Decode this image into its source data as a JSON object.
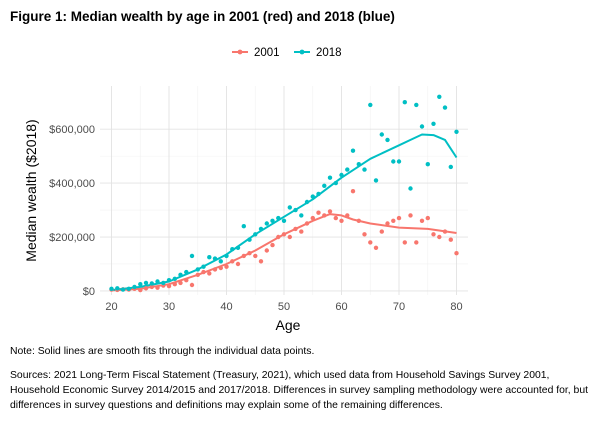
{
  "figure": {
    "title": "Figure 1: Median wealth by age in 2001 (red) and 2018 (blue)",
    "note": "Note: Solid lines are smooth fits through the individual data points.",
    "sources": "Sources: 2021 Long-Term Fiscal Statement (Treasury, 2021), which used data from Household Savings Survey 2001, Household Economic Survey 2014/2015 and 2017/2018. Differences in survey sampling methodology were accounted for, but differences in survey questions and definitions may explain some of the remaining differences."
  },
  "chart_data": {
    "type": "scatter",
    "xlabel": "Age",
    "ylabel": "Median wealth ($2018)",
    "xlim": [
      18,
      82
    ],
    "ylim": [
      -15000,
      760000
    ],
    "x_ticks": [
      20,
      30,
      40,
      50,
      60,
      70,
      80
    ],
    "y_ticks": [
      0,
      200000,
      400000,
      600000
    ],
    "y_tick_labels": [
      "$0",
      "$200,000",
      "$400,000",
      "$600,000"
    ],
    "grid": true,
    "legend_position": "top",
    "series": [
      {
        "name": "2001",
        "color": "#F8766D",
        "points": [
          [
            20,
            5000
          ],
          [
            21,
            4000
          ],
          [
            22,
            6000
          ],
          [
            23,
            5000
          ],
          [
            24,
            8000
          ],
          [
            25,
            3000
          ],
          [
            26,
            10000
          ],
          [
            27,
            15000
          ],
          [
            28,
            12000
          ],
          [
            29,
            20000
          ],
          [
            30,
            18000
          ],
          [
            31,
            25000
          ],
          [
            32,
            30000
          ],
          [
            33,
            40000
          ],
          [
            34,
            22000
          ],
          [
            35,
            60000
          ],
          [
            36,
            70000
          ],
          [
            37,
            65000
          ],
          [
            38,
            80000
          ],
          [
            39,
            85000
          ],
          [
            40,
            90000
          ],
          [
            41,
            110000
          ],
          [
            42,
            100000
          ],
          [
            43,
            130000
          ],
          [
            44,
            140000
          ],
          [
            45,
            130000
          ],
          [
            46,
            110000
          ],
          [
            47,
            150000
          ],
          [
            48,
            170000
          ],
          [
            49,
            200000
          ],
          [
            50,
            210000
          ],
          [
            51,
            200000
          ],
          [
            52,
            230000
          ],
          [
            53,
            220000
          ],
          [
            54,
            250000
          ],
          [
            55,
            270000
          ],
          [
            56,
            290000
          ],
          [
            57,
            280000
          ],
          [
            58,
            295000
          ],
          [
            59,
            270000
          ],
          [
            60,
            260000
          ],
          [
            61,
            280000
          ],
          [
            62,
            370000
          ],
          [
            63,
            260000
          ],
          [
            64,
            210000
          ],
          [
            65,
            180000
          ],
          [
            66,
            160000
          ],
          [
            67,
            220000
          ],
          [
            68,
            250000
          ],
          [
            69,
            260000
          ],
          [
            70,
            270000
          ],
          [
            71,
            180000
          ],
          [
            72,
            280000
          ],
          [
            73,
            180000
          ],
          [
            74,
            260000
          ],
          [
            75,
            270000
          ],
          [
            76,
            210000
          ],
          [
            77,
            200000
          ],
          [
            78,
            220000
          ],
          [
            79,
            190000
          ],
          [
            80,
            140000
          ]
        ],
        "smooth": [
          [
            20,
            2000
          ],
          [
            25,
            8000
          ],
          [
            30,
            25000
          ],
          [
            35,
            60000
          ],
          [
            40,
            100000
          ],
          [
            45,
            150000
          ],
          [
            50,
            210000
          ],
          [
            55,
            260000
          ],
          [
            58,
            285000
          ],
          [
            60,
            280000
          ],
          [
            62,
            265000
          ],
          [
            65,
            250000
          ],
          [
            70,
            235000
          ],
          [
            75,
            230000
          ],
          [
            80,
            215000
          ]
        ]
      },
      {
        "name": "2018",
        "color": "#00BFC4",
        "points": [
          [
            20,
            8000
          ],
          [
            21,
            10000
          ],
          [
            22,
            5000
          ],
          [
            23,
            8000
          ],
          [
            24,
            15000
          ],
          [
            25,
            25000
          ],
          [
            26,
            30000
          ],
          [
            27,
            28000
          ],
          [
            28,
            35000
          ],
          [
            29,
            30000
          ],
          [
            30,
            40000
          ],
          [
            31,
            45000
          ],
          [
            32,
            60000
          ],
          [
            33,
            70000
          ],
          [
            34,
            130000
          ],
          [
            35,
            80000
          ],
          [
            36,
            90000
          ],
          [
            37,
            125000
          ],
          [
            38,
            120000
          ],
          [
            39,
            110000
          ],
          [
            40,
            130000
          ],
          [
            41,
            155000
          ],
          [
            42,
            160000
          ],
          [
            43,
            240000
          ],
          [
            44,
            190000
          ],
          [
            45,
            210000
          ],
          [
            46,
            230000
          ],
          [
            47,
            250000
          ],
          [
            48,
            260000
          ],
          [
            49,
            270000
          ],
          [
            50,
            260000
          ],
          [
            51,
            310000
          ],
          [
            52,
            300000
          ],
          [
            53,
            280000
          ],
          [
            54,
            330000
          ],
          [
            55,
            350000
          ],
          [
            56,
            360000
          ],
          [
            57,
            390000
          ],
          [
            58,
            420000
          ],
          [
            59,
            400000
          ],
          [
            60,
            430000
          ],
          [
            61,
            450000
          ],
          [
            62,
            520000
          ],
          [
            63,
            470000
          ],
          [
            64,
            450000
          ],
          [
            65,
            690000
          ],
          [
            66,
            410000
          ],
          [
            67,
            580000
          ],
          [
            68,
            560000
          ],
          [
            69,
            480000
          ],
          [
            70,
            480000
          ],
          [
            71,
            700000
          ],
          [
            72,
            380000
          ],
          [
            73,
            690000
          ],
          [
            74,
            610000
          ],
          [
            75,
            470000
          ],
          [
            76,
            620000
          ],
          [
            77,
            720000
          ],
          [
            78,
            680000
          ],
          [
            79,
            460000
          ],
          [
            80,
            590000
          ]
        ],
        "smooth": [
          [
            20,
            3000
          ],
          [
            25,
            15000
          ],
          [
            30,
            35000
          ],
          [
            35,
            80000
          ],
          [
            40,
            135000
          ],
          [
            45,
            210000
          ],
          [
            50,
            275000
          ],
          [
            55,
            340000
          ],
          [
            60,
            420000
          ],
          [
            65,
            490000
          ],
          [
            70,
            540000
          ],
          [
            72,
            560000
          ],
          [
            74,
            580000
          ],
          [
            76,
            578000
          ],
          [
            78,
            560000
          ],
          [
            80,
            495000
          ]
        ]
      }
    ]
  }
}
